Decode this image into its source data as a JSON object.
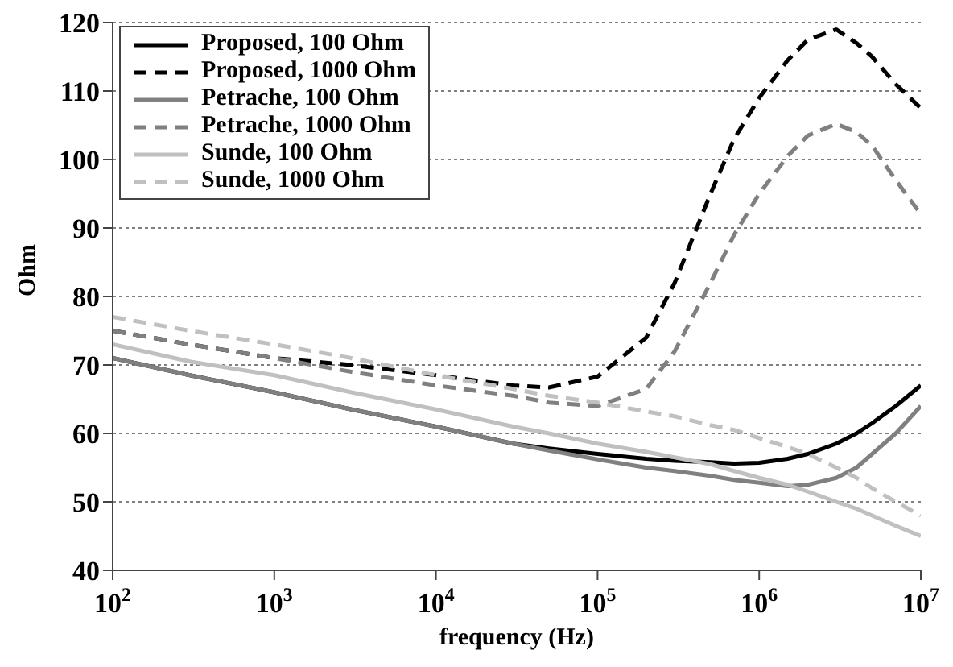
{
  "chart_data": {
    "type": "line",
    "xlabel": "frequency (Hz)",
    "ylabel": "Ohm",
    "log": "x",
    "x": [
      100,
      300,
      1000,
      3000,
      10000,
      30000,
      50000,
      100000,
      200000,
      300000,
      500000,
      700000,
      1000000,
      1500000,
      2000000,
      3000000,
      4000000,
      5000000,
      7000000,
      10000000
    ],
    "series": [
      {
        "name": "Proposed, 100 Ohm",
        "color": "#000000",
        "line_style": "solid",
        "values": [
          71,
          68.5,
          66,
          63.5,
          61,
          58.5,
          57.8,
          57,
          56.3,
          56,
          55.8,
          55.6,
          55.7,
          56.3,
          57,
          58.5,
          60,
          61.5,
          64,
          67
        ]
      },
      {
        "name": "Proposed, 1000 Ohm",
        "color": "#000000",
        "line_style": "dashed",
        "values": [
          75,
          73,
          71,
          70,
          68.5,
          67,
          66.7,
          68.3,
          74,
          82,
          95,
          103,
          109,
          114.5,
          117.5,
          119,
          117,
          115,
          111,
          107.5
        ]
      },
      {
        "name": "Petrache, 100 Ohm",
        "color": "#808080",
        "line_style": "solid",
        "values": [
          71,
          68.5,
          66,
          63.5,
          61,
          58.5,
          57.5,
          56.2,
          55,
          54.5,
          53.8,
          53.2,
          52.8,
          52.3,
          52.5,
          53.5,
          55,
          57,
          60,
          64
        ]
      },
      {
        "name": "Petrache, 1000 Ohm",
        "color": "#808080",
        "line_style": "dashed",
        "values": [
          75,
          73,
          71,
          69,
          67,
          65.5,
          64.5,
          64,
          66.5,
          72,
          82,
          89,
          95,
          100.5,
          103.5,
          105.2,
          104,
          102,
          97,
          92
        ]
      },
      {
        "name": "Sunde, 100 Ohm",
        "color": "#c0c0c0",
        "line_style": "solid",
        "values": [
          73,
          70.5,
          68.5,
          66,
          63.5,
          61,
          60,
          58.5,
          57.3,
          56.5,
          55.5,
          54.5,
          53.5,
          52.5,
          51.5,
          50,
          49,
          48,
          46.5,
          45
        ]
      },
      {
        "name": "Sunde, 1000 Ohm",
        "color": "#c0c0c0",
        "line_style": "dashed",
        "values": [
          77,
          75,
          73,
          71,
          68.5,
          66.5,
          65.5,
          64.5,
          63.2,
          62.5,
          61.2,
          60.5,
          59.3,
          58,
          57,
          55,
          53.5,
          52,
          50,
          48
        ]
      }
    ],
    "xlim": [
      100,
      10000000
    ],
    "xticks": [
      {
        "value": 100,
        "label": "10$^{2}$"
      },
      {
        "value": 1000,
        "label": "10$^{3}$"
      },
      {
        "value": 10000,
        "label": "10$^{4}$"
      },
      {
        "value": 100000,
        "label": "10$^{5}$"
      },
      {
        "value": 1000000,
        "label": "10$^{6}$"
      },
      {
        "value": 10000000,
        "label": "10$^{7}$"
      }
    ],
    "ylim": [
      40,
      120
    ],
    "yticks": [
      40,
      50,
      60,
      70,
      80,
      90,
      100,
      110,
      120
    ],
    "grid": "y",
    "legend": "top left",
    "marker": "none"
  }
}
